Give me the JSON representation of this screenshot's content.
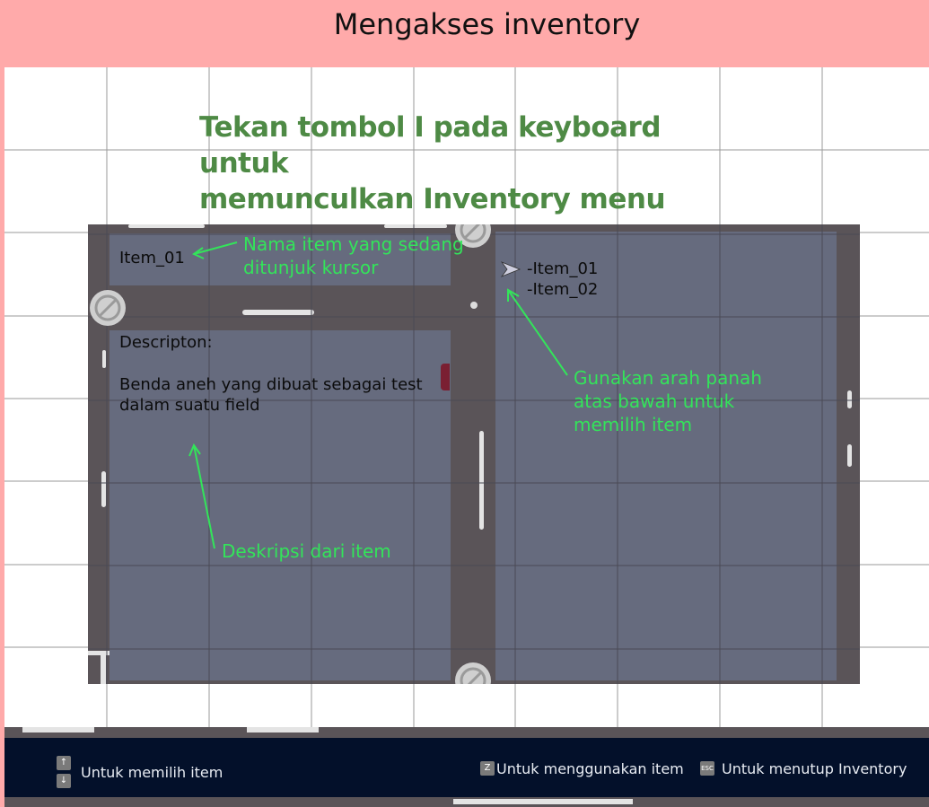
{
  "header": {
    "title": "Mengakses inventory"
  },
  "instruction": {
    "line1": "Tekan tombol I pada keyboard untuk",
    "line2": "memunculkan Inventory menu"
  },
  "inventory": {
    "item_name": "Item_01",
    "description_label": "Descripton:",
    "description_line1": "Benda aneh yang dibuat sebagai test",
    "description_line2": "dalam suatu field",
    "items": [
      "-Item_01",
      "-Item_02"
    ]
  },
  "annotations": {
    "name_note_line1": "Nama item yang sedang",
    "name_note_line2": "ditunjuk kursor",
    "arrow_note_line1": "Gunakan arah panah",
    "arrow_note_line2": "atas bawah untuk",
    "arrow_note_line3": "memilih item",
    "desc_note": "Deskripsi dari item"
  },
  "controls": {
    "select_label": "Untuk memilih item",
    "use_key": "Z",
    "use_label": "Untuk menggunakan item",
    "close_key": "ESC",
    "close_label": "Untuk menutup Inventory"
  },
  "colors": {
    "header_bg": "#ffaaaa",
    "instruction": "#4e8a45",
    "annotation": "#33e45a",
    "panel": "#666b7e",
    "bottom_bar": "#03102a"
  }
}
